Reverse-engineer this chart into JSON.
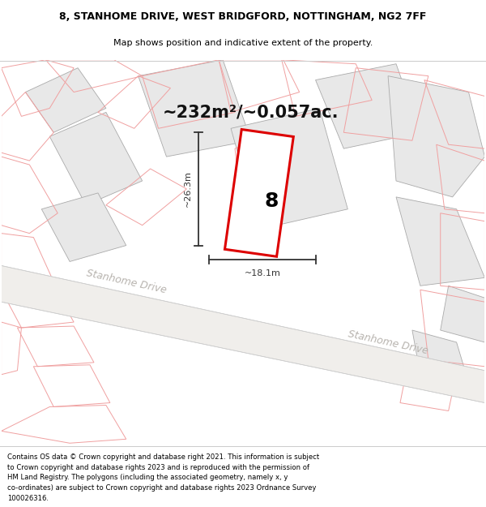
{
  "title_line1": "8, STANHOME DRIVE, WEST BRIDGFORD, NOTTINGHAM, NG2 7FF",
  "title_line2": "Map shows position and indicative extent of the property.",
  "area_text": "~232m²/~0.057ac.",
  "property_number": "8",
  "dim_width": "~18.1m",
  "dim_height": "~26.3m",
  "road_label1": "Stanhome Drive",
  "road_label2": "Stanhome Drive",
  "footer_text": "Contains OS data © Crown copyright and database right 2021. This information is subject to Crown copyright and database rights 2023 and is reproduced with the permission of HM Land Registry. The polygons (including the associated geometry, namely x, y co-ordinates) are subject to Crown copyright and database rights 2023 Ordnance Survey 100026316.",
  "map_bg": "#ffffff",
  "grey_fill": "#e8e8e8",
  "grey_edge": "#aaaaaa",
  "pink_edge": "#f0a0a0",
  "pink_fill": "none",
  "plot_line_color": "#dd0000",
  "plot_fill_color": "#ffffff",
  "dim_line_color": "#333333",
  "road_text_color": "#b8b4af",
  "text_color": "#222222"
}
